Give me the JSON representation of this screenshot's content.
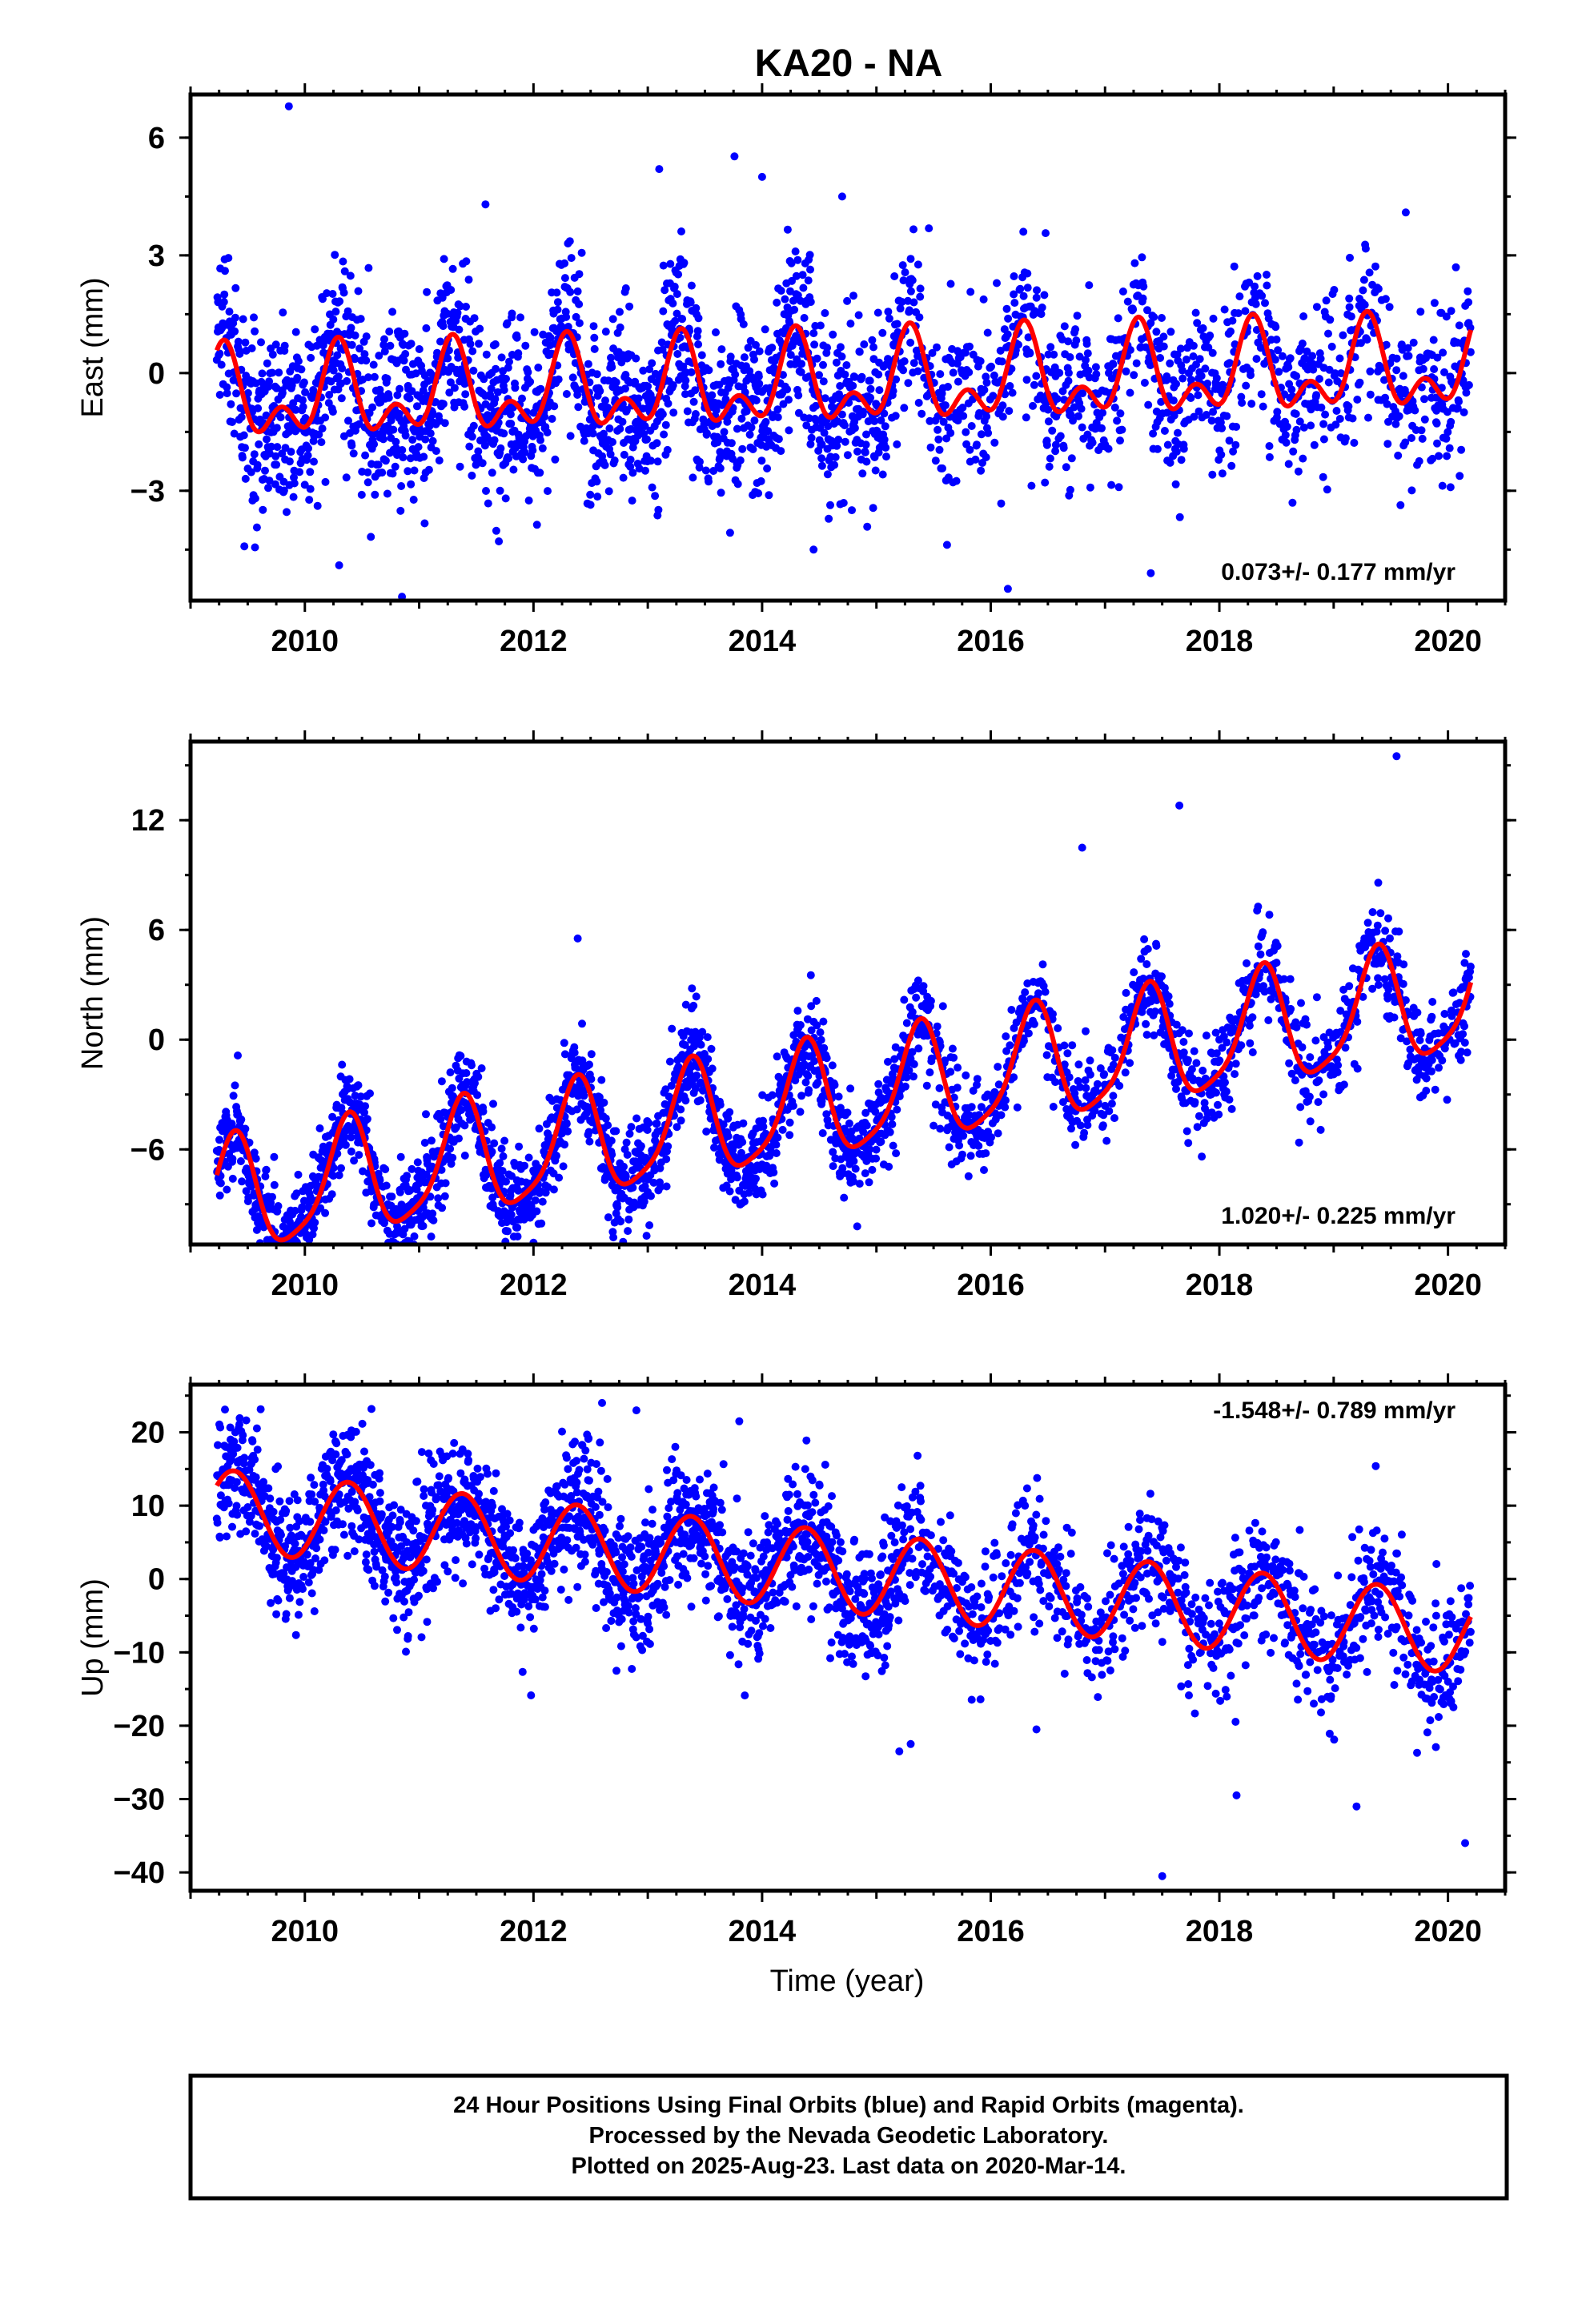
{
  "figure": {
    "title": "KA20 - NA",
    "xlabel": "Time (year)",
    "footer_lines": [
      "24 Hour Positions Using Final Orbits (blue) and Rapid Orbits (magenta).",
      "Processed by the Nevada Geodetic Laboratory.",
      "Plotted on 2025-Aug-23. Last data on 2020-Mar-14."
    ]
  },
  "chart_data": [
    {
      "type": "scatter",
      "panel": "east",
      "ylabel": "East (mm)",
      "xlim": [
        2009.0,
        2020.5
      ],
      "ylim": [
        -5.8,
        7.1
      ],
      "xticks": [
        2010,
        2012,
        2014,
        2016,
        2018,
        2020
      ],
      "yticks": [
        -3,
        0,
        3,
        6
      ],
      "rate_label": "0.073+/- 0.177 mm/yr",
      "rate_position": "bottom-right",
      "data_start": 2009.23,
      "data_end": 2020.2,
      "fit": {
        "velocity": 0.073,
        "offset": -0.3,
        "annual_sin": 0.85,
        "annual_cos": -0.2,
        "semiannual_sin": -0.35,
        "semiannual_cos": -0.55
      },
      "scatter_sd": 1.1,
      "outliers": [
        [
          2009.86,
          6.8
        ],
        [
          2011.58,
          4.3
        ],
        [
          2013.1,
          5.2
        ],
        [
          2014.0,
          5.0
        ],
        [
          2014.7,
          4.5
        ],
        [
          2010.3,
          -4.9
        ],
        [
          2010.85,
          -5.7
        ],
        [
          2016.15,
          -5.5
        ],
        [
          2017.4,
          -5.1
        ],
        [
          2014.45,
          -4.5
        ]
      ],
      "colors": {
        "points": "#0000ff",
        "fit": "#ff0000"
      }
    },
    {
      "type": "scatter",
      "panel": "north",
      "ylabel": "North (mm)",
      "xlim": [
        2009.0,
        2020.5
      ],
      "ylim": [
        -11.2,
        16.3
      ],
      "xticks": [
        2010,
        2012,
        2014,
        2016,
        2018,
        2020
      ],
      "yticks": [
        -6,
        0,
        6,
        12
      ],
      "rate_label": "1.020+/- 0.225 mm/yr",
      "rate_position": "bottom-right",
      "data_start": 2009.23,
      "data_end": 2020.2,
      "fit": {
        "velocity": 1.02,
        "offset": -3.5,
        "annual_sin": 2.2,
        "annual_cos": -2.2,
        "semiannual_sin": -0.6,
        "semiannual_cos": 0.3
      },
      "scatter_sd": 1.3,
      "outliers": [
        [
          2019.55,
          15.5
        ],
        [
          2017.65,
          12.8
        ],
        [
          2009.9,
          -10.5
        ],
        [
          2011.2,
          -9.2
        ],
        [
          2015.5,
          -4.7
        ],
        [
          2018.0,
          0.0
        ],
        [
          2018.95,
          -1.5
        ],
        [
          2016.8,
          10.5
        ]
      ],
      "colors": {
        "points": "#0000ff",
        "fit": "#ff0000"
      }
    },
    {
      "type": "scatter",
      "panel": "up",
      "ylabel": "Up (mm)",
      "xlim": [
        2009.0,
        2020.5
      ],
      "ylim": [
        -42.5,
        26.5
      ],
      "xticks": [
        2010,
        2012,
        2014,
        2016,
        2018,
        2020
      ],
      "yticks": [
        -40,
        -30,
        -20,
        -10,
        0,
        10,
        20
      ],
      "rate_label": "-1.548+/- 0.789 mm/yr",
      "rate_position": "top-right",
      "data_start": 2009.23,
      "data_end": 2020.2,
      "fit": {
        "velocity": -1.548,
        "offset": 1.3,
        "annual_sin": 3.8,
        "annual_cos": -4.0,
        "semiannual_sin": 0.0,
        "semiannual_cos": 0.0
      },
      "scatter_sd": 4.3,
      "outliers": [
        [
          2012.6,
          24.0
        ],
        [
          2012.9,
          23.0
        ],
        [
          2013.8,
          21.5
        ],
        [
          2017.5,
          -40.5
        ],
        [
          2020.15,
          -36.0
        ],
        [
          2019.2,
          -31.0
        ],
        [
          2018.15,
          -29.5
        ],
        [
          2015.2,
          -23.5
        ],
        [
          2015.3,
          -22.5
        ],
        [
          2016.4,
          -20.5
        ]
      ],
      "colors": {
        "points": "#0000ff",
        "fit": "#ff0000"
      }
    }
  ]
}
